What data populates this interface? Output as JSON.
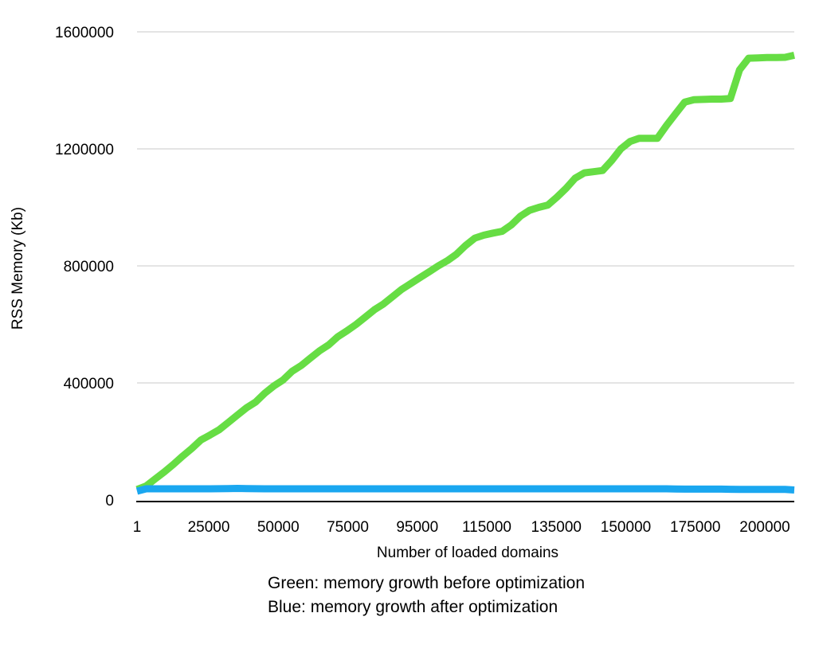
{
  "chart_data": {
    "type": "line",
    "xlabel": "Number of loaded domains",
    "ylabel": "RSS Memory (Kb)",
    "ylim": [
      0,
      1600000
    ],
    "yticks": [
      0,
      400000,
      800000,
      1200000,
      1600000
    ],
    "x_tick_labels": [
      "1",
      "25000",
      "50000",
      "75000",
      "95000",
      "115000",
      "135000",
      "150000",
      "175000",
      "200000"
    ],
    "grid": true,
    "series": [
      {
        "color": "#66dd44",
        "values": [
          36000,
          48000,
          72000,
          96000,
          122000,
          150000,
          176000,
          205000,
          222000,
          240000,
          265000,
          290000,
          315000,
          335000,
          365000,
          390000,
          410000,
          440000,
          460000,
          485000,
          510000,
          530000,
          558000,
          578000,
          600000,
          625000,
          650000,
          670000,
          695000,
          720000,
          740000,
          760000,
          780000,
          800000,
          818000,
          840000,
          870000,
          895000,
          905000,
          912000,
          918000,
          940000,
          970000,
          990000,
          1000000,
          1008000,
          1035000,
          1065000,
          1100000,
          1118000,
          1122000,
          1126000,
          1160000,
          1200000,
          1225000,
          1236000,
          1236000,
          1236000,
          1280000,
          1320000,
          1360000,
          1368000,
          1369000,
          1370000,
          1370000,
          1372000,
          1470000,
          1510000,
          1511000,
          1512000,
          1512000,
          1513000,
          1520000
        ]
      },
      {
        "color": "#1aa7f0",
        "values": [
          30000,
          38000,
          38000,
          38000,
          38000,
          38000,
          38000,
          38000,
          38000,
          38500,
          39000,
          39500,
          39000,
          38500,
          38000,
          38000,
          38000,
          38000,
          38000,
          38000,
          38000,
          38000,
          38000,
          38000,
          38000,
          38000,
          38000,
          38000,
          38000,
          38000,
          38000,
          38000,
          38000,
          38000,
          38000,
          38000,
          38000,
          38000,
          38000,
          38000,
          38000,
          38000,
          38000,
          38000,
          38000,
          38000,
          38000,
          38000,
          38000,
          38000,
          38000,
          38000,
          38000,
          38000,
          38000,
          38000,
          38000,
          38000,
          38000,
          37500,
          37000,
          37000,
          37000,
          37000,
          37000,
          36500,
          36000,
          36000,
          36000,
          36000,
          36000,
          36000,
          34000
        ]
      }
    ]
  },
  "caption": {
    "line1": "Green: memory growth before optimization",
    "line2": "Blue: memory growth after optimization"
  }
}
